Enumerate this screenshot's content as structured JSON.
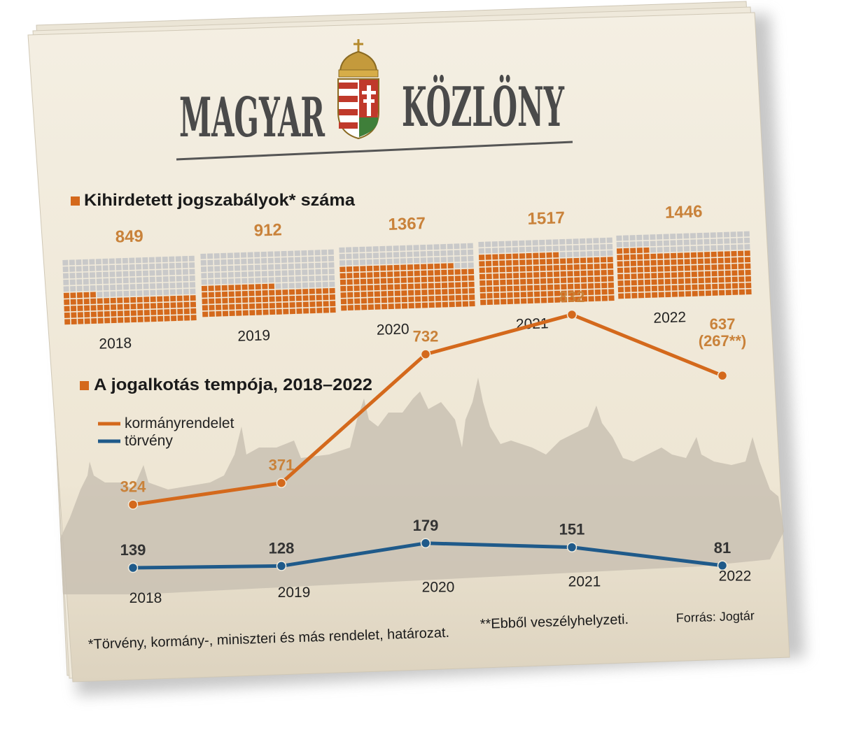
{
  "masthead": {
    "left": "MAGYAR",
    "right": "KÖZLÖNY"
  },
  "colors": {
    "orange": "#d4691c",
    "orange_label": "#c9823a",
    "blue": "#1f5a8a",
    "grey_cell": "#c9c9c9",
    "paper": "#f1ebdc",
    "skyline": "#c7bfb2"
  },
  "chart_data": [
    {
      "type": "waffle",
      "title": "Kihirdetett jogszabályok* száma",
      "categories": [
        "2018",
        "2019",
        "2020",
        "2021",
        "2022"
      ],
      "values": [
        849,
        912,
        1367,
        1517,
        1446
      ],
      "value_labels": [
        "849",
        "912",
        "1367",
        "1517",
        "1446"
      ]
    },
    {
      "type": "line",
      "title": "A jogalkotás tempója, 2018–2022",
      "x": [
        "2018",
        "2019",
        "2020",
        "2021",
        "2022"
      ],
      "series": [
        {
          "name": "kormányrendelet",
          "values": [
            324,
            371,
            732,
            832,
            637
          ],
          "labels": [
            "324",
            "371",
            "732",
            "832",
            "637"
          ],
          "extra_label": "(267**)"
        },
        {
          "name": "törvény",
          "values": [
            139,
            128,
            179,
            151,
            81
          ],
          "labels": [
            "139",
            "128",
            "179",
            "151",
            "81"
          ]
        }
      ]
    }
  ],
  "footnote": "*Törvény, kormány-, miniszteri és más rendelet, határozat.",
  "footnote2": "**Ebből veszélyhelyzeti.",
  "source": "Forrás: Jogtár"
}
